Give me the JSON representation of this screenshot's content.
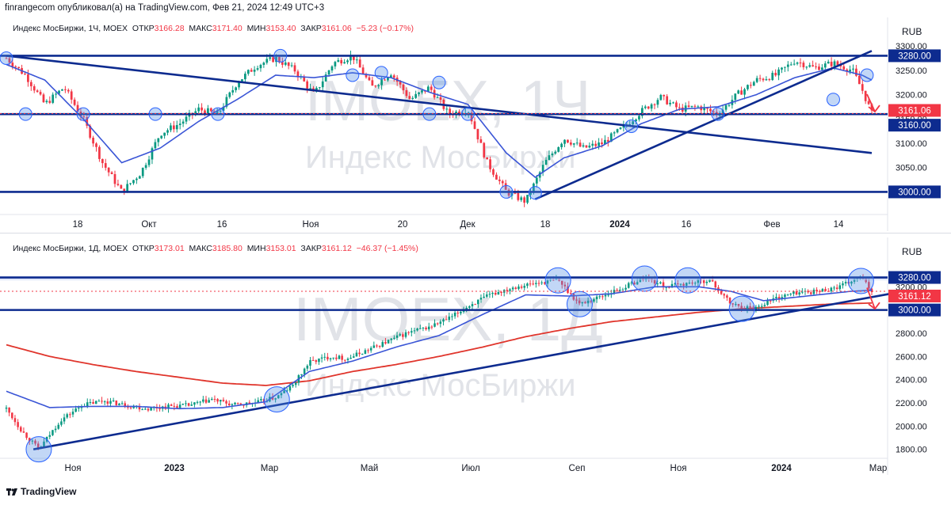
{
  "header": {
    "published": "finrangecom опубликовал(а) на TradingView.com, Фев 21, 2024 12:49 UTC+3"
  },
  "footer": {
    "brand": "TradingView"
  },
  "colors": {
    "up": "#089981",
    "down": "#f23645",
    "line": "#0d2b8f",
    "ma": "#3a55d6",
    "ma200": "#e0352c",
    "level_bg": "#0d2b8f"
  },
  "chart_data": [
    {
      "type": "candlestick",
      "symbol": "Индекс МосБиржи, 1Ч, MOEX",
      "ohlc": {
        "open_label": "ОТКР",
        "open": "3166.28",
        "high_label": "МАКС",
        "high": "3171.40",
        "low_label": "МИН",
        "low": "3153.40",
        "close_label": "ЗАКР",
        "close": "3161.06",
        "change": "−5.23 (−0.17%)"
      },
      "watermark": {
        "ticker": "IMOEX, 1Ч",
        "name": "Индекс МосБиржи"
      },
      "currency": "RUB",
      "y_ticks": [
        "3300.00",
        "3250.00",
        "3200.00",
        "3150.00",
        "3100.00",
        "3050.00"
      ],
      "ylim": [
        2960,
        3310
      ],
      "x_ticks": [
        "18",
        "Окт",
        "16",
        "Ноя",
        "20",
        "Дек",
        "18",
        "2024",
        "16",
        "Фев",
        "14"
      ],
      "level_labels": [
        "3280.00",
        "3161.06",
        "3160.00",
        "3000.00"
      ],
      "price_path": [
        [
          0,
          3275
        ],
        [
          4,
          3240
        ],
        [
          8,
          3180
        ],
        [
          12,
          3215
        ],
        [
          16,
          3150
        ],
        [
          20,
          3060
        ],
        [
          24,
          3000
        ],
        [
          28,
          3040
        ],
        [
          32,
          3120
        ],
        [
          36,
          3140
        ],
        [
          40,
          3170
        ],
        [
          44,
          3160
        ],
        [
          48,
          3225
        ],
        [
          52,
          3260
        ],
        [
          56,
          3275
        ],
        [
          60,
          3250
        ],
        [
          64,
          3200
        ],
        [
          68,
          3265
        ],
        [
          72,
          3280
        ],
        [
          76,
          3215
        ],
        [
          80,
          3245
        ],
        [
          84,
          3190
        ],
        [
          88,
          3215
        ],
        [
          92,
          3160
        ],
        [
          96,
          3170
        ],
        [
          100,
          3060
        ],
        [
          104,
          3000
        ],
        [
          108,
          2980
        ],
        [
          112,
          3060
        ],
        [
          116,
          3110
        ],
        [
          120,
          3090
        ],
        [
          124,
          3100
        ],
        [
          128,
          3130
        ],
        [
          132,
          3165
        ],
        [
          136,
          3195
        ],
        [
          140,
          3170
        ],
        [
          144,
          3175
        ],
        [
          148,
          3160
        ],
        [
          152,
          3200
        ],
        [
          156,
          3230
        ],
        [
          160,
          3240
        ],
        [
          164,
          3270
        ],
        [
          168,
          3255
        ],
        [
          172,
          3265
        ],
        [
          176,
          3250
        ],
        [
          178,
          3210
        ],
        [
          180,
          3161
        ]
      ],
      "ma_path": [
        [
          0,
          3262
        ],
        [
          8,
          3230
        ],
        [
          16,
          3150
        ],
        [
          24,
          3060
        ],
        [
          32,
          3090
        ],
        [
          40,
          3145
        ],
        [
          48,
          3190
        ],
        [
          56,
          3240
        ],
        [
          64,
          3235
        ],
        [
          72,
          3245
        ],
        [
          80,
          3235
        ],
        [
          88,
          3205
        ],
        [
          96,
          3180
        ],
        [
          104,
          3080
        ],
        [
          110,
          3030
        ],
        [
          116,
          3070
        ],
        [
          124,
          3095
        ],
        [
          132,
          3140
        ],
        [
          140,
          3170
        ],
        [
          148,
          3175
        ],
        [
          156,
          3200
        ],
        [
          164,
          3235
        ],
        [
          172,
          3255
        ],
        [
          178,
          3240
        ],
        [
          180,
          3230
        ]
      ],
      "lines": [
        {
          "name": "resistance-3280",
          "y": 3280
        },
        {
          "name": "level-3160",
          "y": 3160
        },
        {
          "name": "support-3000",
          "y": 3000
        },
        {
          "name": "downtrend",
          "from": [
            0,
            3280
          ],
          "to": [
            180,
            3080
          ]
        },
        {
          "name": "uptrend",
          "from": [
            110,
            2985
          ],
          "to": [
            180,
            3290
          ]
        }
      ]
    },
    {
      "type": "candlestick",
      "symbol": "Индекс МосБиржи, 1Д, MOEX",
      "ohlc": {
        "open_label": "ОТКР",
        "open": "3173.01",
        "high_label": "МАКС",
        "high": "3185.80",
        "low_label": "МИН",
        "low": "3153.01",
        "close_label": "ЗАКР",
        "close": "3161.12",
        "change": "−46.37 (−1.45%)"
      },
      "watermark": {
        "ticker": "IMOEX, 1Д",
        "name": "Индекс МосБиржи"
      },
      "currency": "RUB",
      "y_ticks": [
        "3200.00",
        "2800.00",
        "2600.00",
        "2400.00",
        "2200.00",
        "2000.00",
        "1800.00"
      ],
      "ylim": [
        1750,
        3420
      ],
      "x_ticks": [
        "Ноя",
        "2023",
        "Мар",
        "Май",
        "Июл",
        "Сеп",
        "Ноя",
        "2024",
        "Мар"
      ],
      "level_labels": [
        "3280.00",
        "3161.12",
        "3000.00"
      ],
      "price_path": [
        [
          0,
          2150
        ],
        [
          3,
          1950
        ],
        [
          6,
          1800
        ],
        [
          10,
          2050
        ],
        [
          14,
          2180
        ],
        [
          18,
          2220
        ],
        [
          22,
          2180
        ],
        [
          26,
          2150
        ],
        [
          30,
          2170
        ],
        [
          34,
          2180
        ],
        [
          38,
          2230
        ],
        [
          42,
          2180
        ],
        [
          46,
          2200
        ],
        [
          50,
          2250
        ],
        [
          53,
          2350
        ],
        [
          56,
          2550
        ],
        [
          60,
          2600
        ],
        [
          63,
          2580
        ],
        [
          66,
          2640
        ],
        [
          70,
          2720
        ],
        [
          74,
          2800
        ],
        [
          78,
          2850
        ],
        [
          82,
          2930
        ],
        [
          86,
          3050
        ],
        [
          90,
          3140
        ],
        [
          94,
          3200
        ],
        [
          98,
          3230
        ],
        [
          102,
          3260
        ],
        [
          106,
          3050
        ],
        [
          110,
          3120
        ],
        [
          114,
          3190
        ],
        [
          118,
          3280
        ],
        [
          122,
          3200
        ],
        [
          126,
          3230
        ],
        [
          130,
          3260
        ],
        [
          134,
          3050
        ],
        [
          138,
          3010
        ],
        [
          142,
          3100
        ],
        [
          146,
          3150
        ],
        [
          150,
          3160
        ],
        [
          154,
          3200
        ],
        [
          158,
          3280
        ],
        [
          160,
          3161
        ]
      ],
      "ma_path": [
        [
          0,
          2300
        ],
        [
          8,
          2160
        ],
        [
          16,
          2170
        ],
        [
          24,
          2170
        ],
        [
          32,
          2150
        ],
        [
          40,
          2160
        ],
        [
          48,
          2210
        ],
        [
          56,
          2470
        ],
        [
          64,
          2560
        ],
        [
          72,
          2680
        ],
        [
          80,
          2780
        ],
        [
          88,
          2960
        ],
        [
          96,
          3130
        ],
        [
          104,
          3120
        ],
        [
          112,
          3140
        ],
        [
          120,
          3200
        ],
        [
          128,
          3200
        ],
        [
          134,
          3160
        ],
        [
          140,
          3080
        ],
        [
          148,
          3120
        ],
        [
          156,
          3160
        ],
        [
          160,
          3170
        ]
      ],
      "ma200_path": [
        [
          0,
          2700
        ],
        [
          8,
          2600
        ],
        [
          16,
          2530
        ],
        [
          24,
          2470
        ],
        [
          32,
          2420
        ],
        [
          40,
          2370
        ],
        [
          48,
          2350
        ],
        [
          56,
          2390
        ],
        [
          64,
          2470
        ],
        [
          72,
          2530
        ],
        [
          80,
          2600
        ],
        [
          88,
          2680
        ],
        [
          96,
          2770
        ],
        [
          104,
          2840
        ],
        [
          112,
          2900
        ],
        [
          120,
          2940
        ],
        [
          128,
          2980
        ],
        [
          136,
          3010
        ],
        [
          144,
          3030
        ],
        [
          152,
          3050
        ],
        [
          160,
          3060
        ]
      ],
      "lines": [
        {
          "name": "resistance-3280",
          "y": 3280
        },
        {
          "name": "support-3000",
          "y": 3000
        },
        {
          "name": "long-uptrend",
          "from": [
            5,
            1800
          ],
          "to": [
            162,
            3140
          ]
        }
      ]
    }
  ]
}
